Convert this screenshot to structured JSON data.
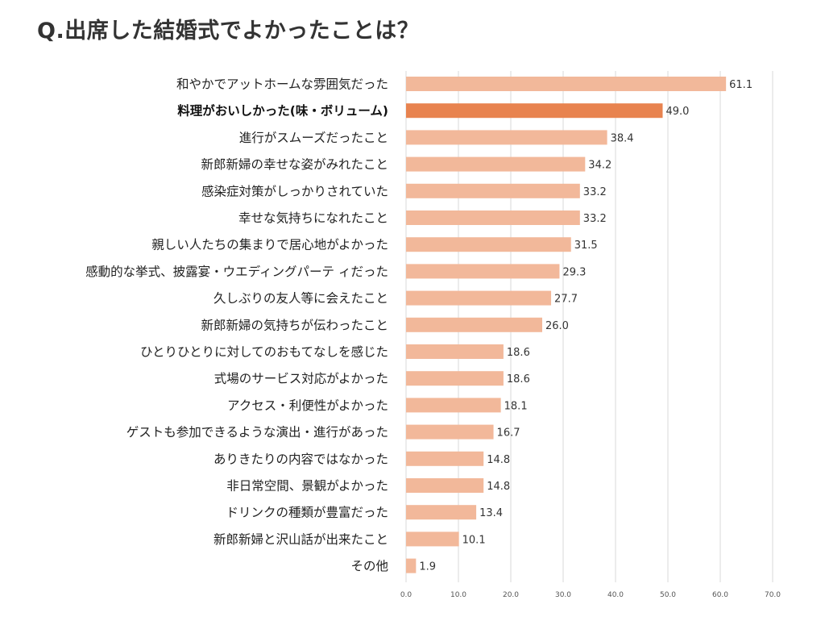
{
  "title": "Q.出席した結婚式でよかったことは？",
  "colors": {
    "bar": "#F2B89A",
    "bar_highlight": "#E8834F",
    "grid": "#D9D9D9"
  },
  "chart_data": {
    "type": "bar",
    "orientation": "horizontal",
    "title": "Q.出席した結婚式でよかったことは？",
    "xlabel": "",
    "ylabel": "",
    "xlim": [
      0,
      70
    ],
    "grid": true,
    "highlight_index": 1,
    "ticks": [
      "0.0",
      "10.0",
      "20.0",
      "30.0",
      "40.0",
      "50.0",
      "60.0",
      "70.0"
    ],
    "categories": [
      "和やかでアットホームな雰囲気だった",
      "料理がおいしかった(味・ボリューム)",
      "進行がスムーズだったこと",
      "新郎新婦の幸せな姿がみれたこと",
      "感染症対策がしっかりされていた",
      "幸せな気持ちになれたこと",
      "親しい人たちの集まりで居心地がよかった",
      "感動的な挙式、披露宴・ウエディングパーテ ィだった",
      "久しぶりの友人等に会えたこと",
      "新郎新婦の気持ちが伝わったこと",
      "ひとりひとりに対してのおもてなしを感じた",
      "式場のサービス対応がよかった",
      "アクセス・利便性がよかった",
      "ゲストも参加できるような演出・進行があった",
      "ありきたりの内容ではなかった",
      "非日常空間、景観がよかった",
      "ドリンクの種類が豊富だった",
      "新郎新婦と沢山話が出来たこと",
      "その他"
    ],
    "values": [
      61.1,
      49.0,
      38.4,
      34.2,
      33.2,
      33.2,
      31.5,
      29.3,
      27.7,
      26.0,
      18.6,
      18.6,
      18.1,
      16.7,
      14.8,
      14.8,
      13.4,
      10.1,
      1.9
    ],
    "value_labels": [
      "61.1",
      "49.0",
      "38.4",
      "34.2",
      "33.2",
      "33.2",
      "31.5",
      "29.3",
      "27.7",
      "26.0",
      "18.6",
      "18.6",
      "18.1",
      "16.7",
      "14.8",
      "14.8",
      "13.4",
      "10.1",
      "1.9"
    ]
  }
}
